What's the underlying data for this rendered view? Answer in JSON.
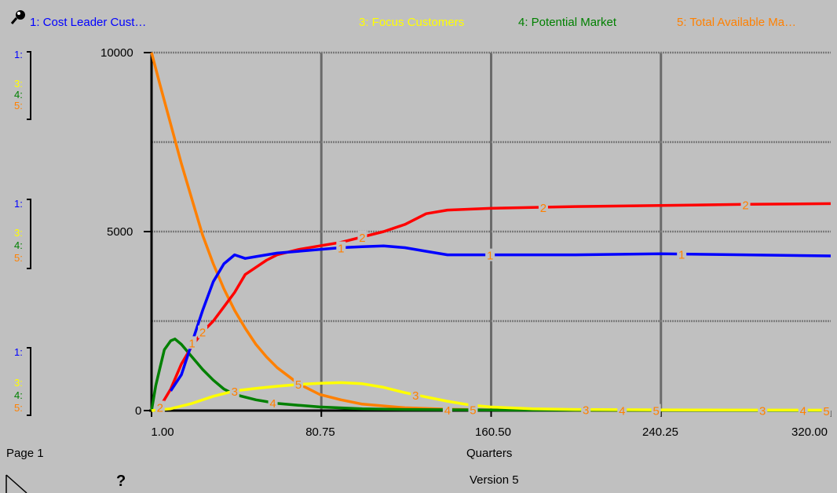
{
  "legend": [
    {
      "label": "1: Cost Leader Cust…",
      "color": "#0000ff"
    },
    {
      "label": "3: Focus Customers",
      "color": "#ffff00"
    },
    {
      "label": "4: Potential  Market",
      "color": "#008000"
    },
    {
      "label": "5: Total Available  Ma…",
      "color": "#ff8000"
    }
  ],
  "scale_labels": [
    "1:",
    "3:",
    "4:",
    "5:"
  ],
  "footer": {
    "page": "Page 1",
    "version": "Version 5",
    "help": "?"
  },
  "icons": [
    "probe-icon",
    "page-turn-icon",
    "help-icon"
  ],
  "chart_data": {
    "type": "line",
    "xlabel": "Quarters",
    "xlim": [
      1,
      320
    ],
    "ylim": [
      0,
      10000
    ],
    "x_ticks": [
      "1.00",
      "80.75",
      "160.50",
      "240.25",
      "320.00"
    ],
    "y_ticks": [
      "10000",
      "5000",
      "0"
    ],
    "grid": true,
    "series": [
      {
        "id": "1",
        "color": "#0000ff",
        "points": [
          [
            10,
            550
          ],
          [
            15,
            1000
          ],
          [
            20,
            1900
          ],
          [
            25,
            2800
          ],
          [
            30,
            3600
          ],
          [
            35,
            4100
          ],
          [
            40,
            4350
          ],
          [
            45,
            4250
          ],
          [
            50,
            4300
          ],
          [
            55,
            4350
          ],
          [
            60,
            4400
          ],
          [
            70,
            4450
          ],
          [
            80,
            4500
          ],
          [
            90,
            4550
          ],
          [
            100,
            4580
          ],
          [
            110,
            4600
          ],
          [
            120,
            4550
          ],
          [
            130,
            4450
          ],
          [
            140,
            4350
          ],
          [
            160,
            4350
          ],
          [
            200,
            4350
          ],
          [
            240,
            4380
          ],
          [
            280,
            4350
          ],
          [
            320,
            4320
          ]
        ]
      },
      {
        "id": "2",
        "color": "#ff0000",
        "points": [
          [
            5,
            100
          ],
          [
            10,
            600
          ],
          [
            15,
            1300
          ],
          [
            20,
            1800
          ],
          [
            25,
            2200
          ],
          [
            30,
            2500
          ],
          [
            35,
            2900
          ],
          [
            40,
            3300
          ],
          [
            45,
            3800
          ],
          [
            50,
            4000
          ],
          [
            55,
            4200
          ],
          [
            60,
            4350
          ],
          [
            70,
            4500
          ],
          [
            80,
            4600
          ],
          [
            90,
            4700
          ],
          [
            100,
            4850
          ],
          [
            110,
            5000
          ],
          [
            120,
            5200
          ],
          [
            130,
            5500
          ],
          [
            140,
            5600
          ],
          [
            160,
            5650
          ],
          [
            200,
            5700
          ],
          [
            240,
            5730
          ],
          [
            280,
            5760
          ],
          [
            320,
            5780
          ]
        ]
      },
      {
        "id": "3",
        "color": "#ffff00",
        "points": [
          [
            1,
            0
          ],
          [
            10,
            50
          ],
          [
            20,
            200
          ],
          [
            30,
            400
          ],
          [
            40,
            550
          ],
          [
            50,
            620
          ],
          [
            60,
            680
          ],
          [
            70,
            730
          ],
          [
            80,
            760
          ],
          [
            90,
            780
          ],
          [
            100,
            750
          ],
          [
            110,
            650
          ],
          [
            120,
            500
          ],
          [
            130,
            380
          ],
          [
            140,
            260
          ],
          [
            150,
            160
          ],
          [
            160,
            100
          ],
          [
            180,
            50
          ],
          [
            200,
            30
          ],
          [
            240,
            20
          ],
          [
            320,
            10
          ]
        ]
      },
      {
        "id": "4",
        "color": "#008000",
        "points": [
          [
            1,
            0
          ],
          [
            3,
            700
          ],
          [
            5,
            1200
          ],
          [
            7,
            1700
          ],
          [
            10,
            1950
          ],
          [
            12,
            2000
          ],
          [
            15,
            1850
          ],
          [
            20,
            1500
          ],
          [
            25,
            1150
          ],
          [
            30,
            850
          ],
          [
            35,
            600
          ],
          [
            40,
            450
          ],
          [
            50,
            300
          ],
          [
            60,
            200
          ],
          [
            70,
            150
          ],
          [
            80,
            100
          ],
          [
            100,
            50
          ],
          [
            120,
            30
          ],
          [
            160,
            15
          ],
          [
            320,
            5
          ]
        ]
      },
      {
        "id": "5",
        "color": "#ff8000",
        "points": [
          [
            1,
            10000
          ],
          [
            5,
            9100
          ],
          [
            10,
            8000
          ],
          [
            15,
            6900
          ],
          [
            20,
            5900
          ],
          [
            25,
            4900
          ],
          [
            30,
            4100
          ],
          [
            35,
            3400
          ],
          [
            40,
            2800
          ],
          [
            45,
            2300
          ],
          [
            50,
            1850
          ],
          [
            55,
            1500
          ],
          [
            60,
            1200
          ],
          [
            70,
            750
          ],
          [
            80,
            450
          ],
          [
            90,
            300
          ],
          [
            100,
            180
          ],
          [
            120,
            80
          ],
          [
            140,
            40
          ],
          [
            160,
            20
          ],
          [
            200,
            10
          ],
          [
            320,
            5
          ]
        ]
      }
    ],
    "markers": [
      {
        "series": "1",
        "x": [
          20,
          90,
          160,
          250
        ]
      },
      {
        "series": "2",
        "x": [
          5,
          25,
          100,
          185,
          280
        ]
      },
      {
        "series": "3",
        "x": [
          40,
          125,
          205,
          288
        ]
      },
      {
        "series": "4",
        "x": [
          58,
          140,
          222,
          307
        ]
      },
      {
        "series": "5",
        "x": [
          70,
          152,
          238,
          318
        ]
      }
    ]
  }
}
